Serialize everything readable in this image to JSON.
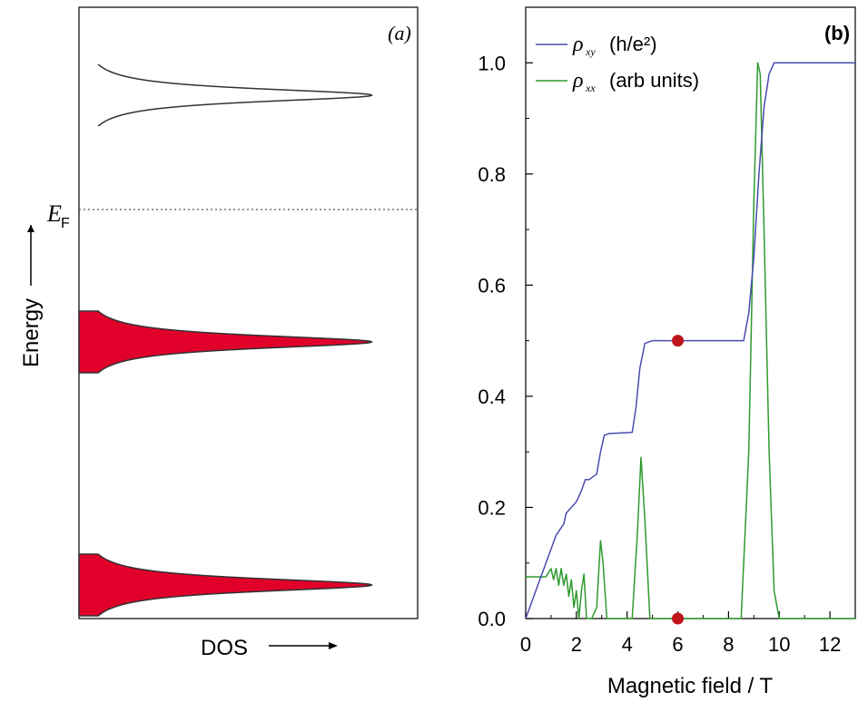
{
  "panel_a": {
    "label": "(a)",
    "y_label": "Energy",
    "x_label": "DOS",
    "fermi_label": "E",
    "fermi_sub": "F",
    "colors": {
      "filled": "#e0002a",
      "line": "#333333"
    },
    "chart_data": {
      "type": "area",
      "description_levels": [
        {
          "state": "empty"
        },
        {
          "state": "filled"
        },
        {
          "state": "filled"
        }
      ]
    }
  },
  "panel_b": {
    "label": "(b)",
    "xlabel": "Magnetic field / T",
    "x_ticks": [
      "0",
      "2",
      "4",
      "6",
      "8",
      "10",
      "12"
    ],
    "y_ticks": [
      "0.0",
      "0.2",
      "0.4",
      "0.6",
      "0.8",
      "1.0"
    ],
    "legend": [
      {
        "symbol": "ρ",
        "sub": "xy",
        "text": "(h/e²)",
        "color": "#4b4bb0"
      },
      {
        "symbol": "ρ",
        "sub": "xx",
        "text": "(arb units)",
        "color": "#2e9a2e"
      }
    ],
    "chart_data": {
      "type": "line",
      "xlim": [
        0,
        13
      ],
      "ylim": [
        0,
        1.1
      ],
      "series": [
        {
          "name": "ρxy (h/e²)",
          "color": "#4b4bb0",
          "x": [
            0,
            0.8,
            1.2,
            1.5,
            1.6,
            1.8,
            2.0,
            2.2,
            2.35,
            2.5,
            2.8,
            2.95,
            3.1,
            3.3,
            4.2,
            4.35,
            4.5,
            4.7,
            5.0,
            8.6,
            8.8,
            9.0,
            9.2,
            9.4,
            9.6,
            9.8,
            13
          ],
          "y": [
            0,
            0.1,
            0.15,
            0.17,
            0.19,
            0.2,
            0.21,
            0.23,
            0.25,
            0.25,
            0.26,
            0.3,
            0.33,
            0.333,
            0.335,
            0.38,
            0.45,
            0.495,
            0.5,
            0.5,
            0.55,
            0.65,
            0.8,
            0.92,
            0.98,
            1.0,
            1.0
          ]
        },
        {
          "name": "ρxx (arb units)",
          "color": "#2e9a2e",
          "x": [
            0,
            0.8,
            1.0,
            1.1,
            1.2,
            1.3,
            1.4,
            1.5,
            1.6,
            1.7,
            1.8,
            1.9,
            2.0,
            2.1,
            2.2,
            2.3,
            2.4,
            2.6,
            2.8,
            2.95,
            3.05,
            3.2,
            3.4,
            4.2,
            4.4,
            4.55,
            4.7,
            4.9,
            5.1,
            8.5,
            8.8,
            9.0,
            9.15,
            9.25,
            9.4,
            9.6,
            9.8,
            10.0,
            13
          ],
          "y": [
            0.075,
            0.075,
            0.09,
            0.07,
            0.09,
            0.06,
            0.09,
            0.06,
            0.08,
            0.04,
            0.07,
            0.02,
            0.05,
            0.0,
            0.05,
            0.08,
            0.0,
            0.0,
            0.02,
            0.14,
            0.1,
            0.0,
            0.0,
            0.0,
            0.15,
            0.29,
            0.18,
            0.0,
            0.0,
            0.0,
            0.3,
            0.75,
            1.0,
            0.98,
            0.7,
            0.3,
            0.05,
            0.0,
            0.0
          ]
        }
      ],
      "markers": [
        {
          "x": 6,
          "y": 0.5,
          "color": "#c0141c"
        },
        {
          "x": 6,
          "y": 0.0,
          "color": "#c0141c"
        }
      ]
    }
  }
}
